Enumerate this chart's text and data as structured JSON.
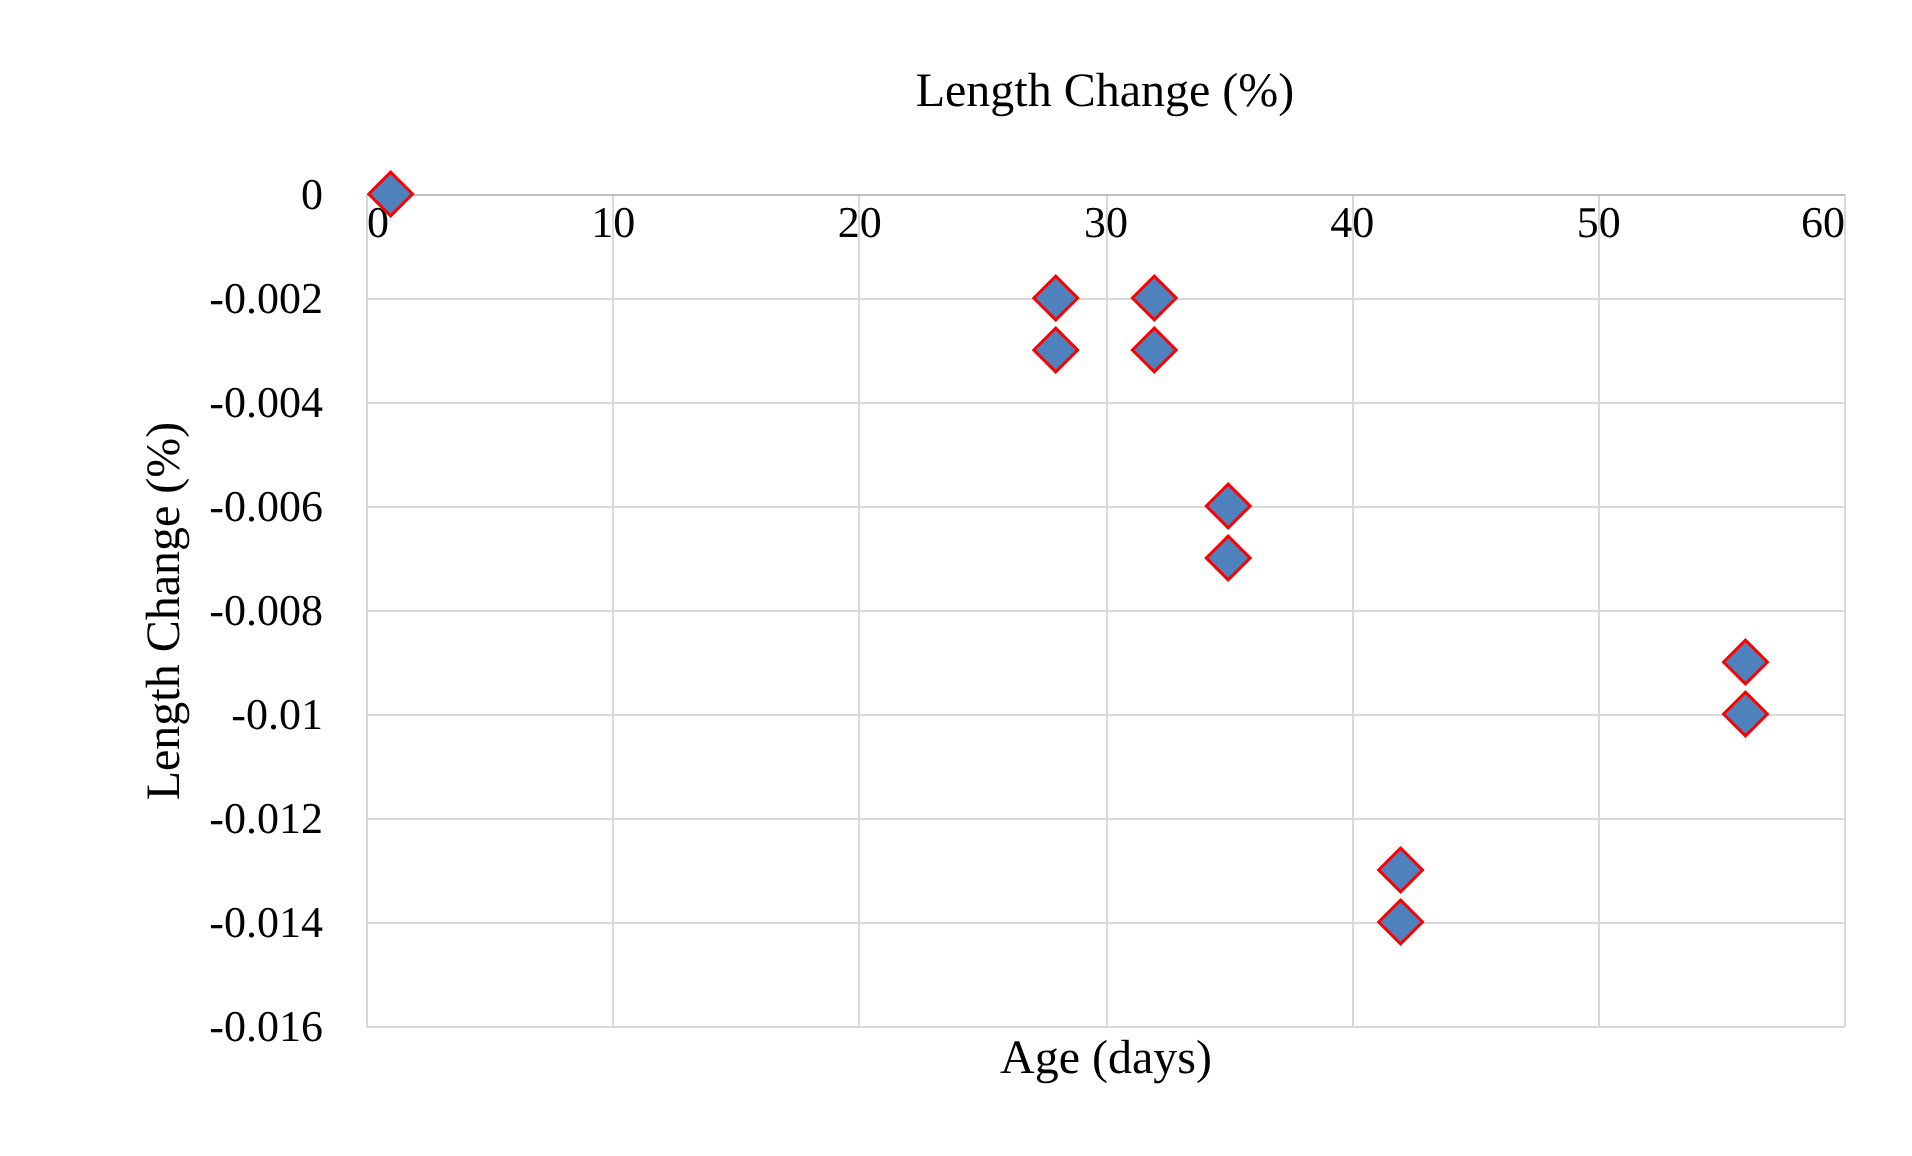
{
  "chart_data": {
    "type": "scatter",
    "title": "Length Change (%)",
    "xlabel": "Age (days)",
    "ylabel": "Length Change (%)",
    "x": [
      1,
      28,
      28,
      32,
      32,
      35,
      35,
      42,
      42,
      56,
      56
    ],
    "series": [
      {
        "color": "#4f81bd",
        "values": [
          0,
          -0.002,
          -0.003,
          -0.002,
          -0.003,
          -0.006,
          -0.007,
          -0.013,
          -0.014,
          -0.009,
          -0.01
        ]
      }
    ],
    "xlim": [
      0,
      60
    ],
    "xticks": [
      0,
      10,
      20,
      30,
      40,
      50,
      60
    ],
    "ylim": [
      -0.016,
      0
    ],
    "yticks": [
      0,
      -0.002,
      -0.004,
      -0.006,
      -0.008,
      -0.01,
      -0.012,
      -0.014,
      -0.016
    ],
    "grid": true,
    "marker": "diamond"
  }
}
